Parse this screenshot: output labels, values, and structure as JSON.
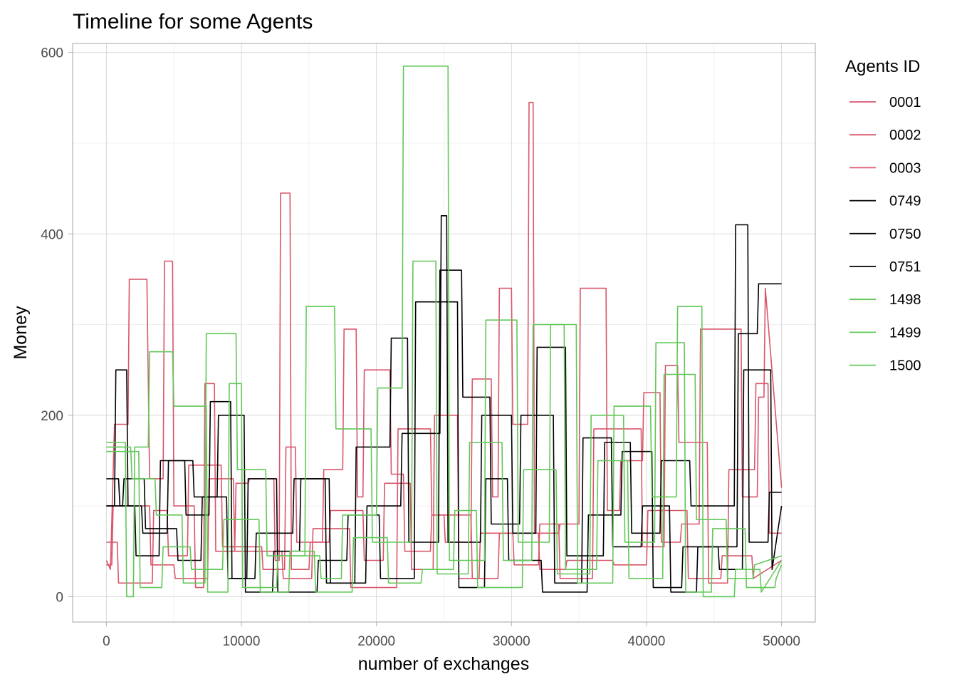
{
  "chart_data": {
    "type": "line",
    "title": "Timeline for some Agents",
    "xlabel": "number of exchanges",
    "ylabel": "Money",
    "xlim": [
      -2500,
      52500
    ],
    "ylim": [
      -28,
      610
    ],
    "x_ticks": [
      0,
      10000,
      20000,
      30000,
      40000,
      50000
    ],
    "x_tick_labels": [
      "0",
      "10000",
      "20000",
      "30000",
      "40000",
      "50000"
    ],
    "y_ticks": [
      0,
      200,
      400,
      600
    ],
    "y_tick_labels": [
      "0",
      "200",
      "400",
      "600"
    ],
    "grid": true,
    "legend": {
      "title": "Agents ID",
      "position": "right"
    },
    "series": [
      {
        "name": "0001",
        "color": "#d9566b",
        "x": [
          0,
          300,
          600,
          1600,
          1700,
          3000,
          3200,
          4200,
          4300,
          4900,
          5000,
          6500,
          6600,
          7200,
          7300,
          8000,
          8100,
          9500,
          9600,
          10500,
          10600,
          12400,
          12500,
          12800,
          12900,
          13600,
          13700,
          15000,
          15100,
          16000,
          16100,
          17500,
          17600,
          18500,
          18600,
          19000,
          19100,
          21000,
          21100,
          22000,
          22100,
          24000,
          24100,
          25000,
          25100,
          27000,
          27100,
          28500,
          28600,
          29000,
          29100,
          30000,
          30100,
          31200,
          31300,
          31600,
          31700,
          33500,
          33600,
          35000,
          35100,
          37000,
          37100,
          38000,
          38100,
          39700,
          39800,
          41000,
          41100,
          42500,
          42600,
          43900,
          44000,
          47000,
          47100,
          48200,
          48300,
          48700,
          48800,
          50000
        ],
        "y": [
          40,
          30,
          190,
          190,
          350,
          350,
          130,
          130,
          370,
          370,
          100,
          100,
          10,
          10,
          235,
          235,
          50,
          50,
          125,
          125,
          130,
          130,
          40,
          40,
          445,
          445,
          30,
          30,
          60,
          60,
          140,
          140,
          295,
          295,
          110,
          110,
          250,
          250,
          135,
          135,
          50,
          50,
          90,
          90,
          60,
          60,
          240,
          240,
          110,
          110,
          340,
          340,
          190,
          190,
          545,
          545,
          70,
          70,
          80,
          80,
          340,
          340,
          95,
          95,
          150,
          150,
          225,
          225,
          60,
          60,
          80,
          80,
          295,
          295,
          110,
          110,
          220,
          220,
          340,
          120
        ]
      },
      {
        "name": "0002",
        "color": "#d9566b",
        "x": [
          0,
          800,
          900,
          3400,
          3500,
          4500,
          4600,
          6000,
          6100,
          8500,
          8600,
          11500,
          11600,
          13200,
          13300,
          14000,
          14100,
          16500,
          16600,
          19000,
          19100,
          20500,
          20600,
          22500,
          22600,
          24200,
          24300,
          26000,
          26100,
          27600,
          27700,
          30100,
          30200,
          32000,
          32100,
          33500,
          33600,
          36000,
          36100,
          39600,
          39700,
          41300,
          41400,
          42300,
          42400,
          44500,
          44600,
          46000,
          46100,
          48000,
          48100,
          49000,
          49100,
          50000
        ],
        "y": [
          60,
          60,
          15,
          15,
          95,
          95,
          45,
          45,
          145,
          145,
          55,
          55,
          30,
          30,
          165,
          165,
          60,
          60,
          95,
          95,
          40,
          40,
          125,
          125,
          30,
          30,
          200,
          200,
          20,
          20,
          70,
          70,
          35,
          35,
          80,
          80,
          20,
          20,
          185,
          185,
          55,
          55,
          255,
          255,
          170,
          170,
          15,
          15,
          140,
          140,
          235,
          235,
          70,
          70
        ]
      },
      {
        "name": "0003",
        "color": "#d9566b",
        "x": [
          0,
          400,
          500,
          3200,
          3300,
          5000,
          5100,
          7500,
          7600,
          9400,
          9500,
          13000,
          13100,
          15200,
          15300,
          18000,
          18100,
          21500,
          21600,
          24000,
          24100,
          27000,
          27100,
          29000,
          29100,
          32000,
          32100,
          34000,
          34100,
          37500,
          37600,
          40000,
          40100,
          43000,
          43100,
          45500,
          45600,
          47800,
          47900,
          50000
        ],
        "y": [
          35,
          35,
          100,
          100,
          35,
          35,
          20,
          20,
          130,
          130,
          50,
          50,
          20,
          20,
          75,
          75,
          10,
          10,
          185,
          185,
          90,
          90,
          20,
          20,
          70,
          70,
          30,
          30,
          40,
          40,
          35,
          35,
          95,
          95,
          20,
          20,
          45,
          45,
          20,
          40
        ]
      },
      {
        "name": "0749",
        "color": "#000000",
        "x": [
          0,
          600,
          700,
          1500,
          1600,
          2600,
          2700,
          4500,
          4600,
          6400,
          6500,
          8200,
          8300,
          10200,
          10300,
          12300,
          12400,
          14300,
          14400,
          16500,
          16600,
          19200,
          19300,
          21800,
          21900,
          24700,
          24800,
          25200,
          25300,
          27700,
          27800,
          30000,
          30100,
          31800,
          31900,
          34000,
          34100,
          36800,
          36900,
          38800,
          38900,
          41000,
          41100,
          43200,
          43300,
          46500,
          46600,
          47500,
          47600,
          49000,
          49100,
          50000
        ],
        "y": [
          100,
          100,
          250,
          250,
          100,
          100,
          70,
          70,
          150,
          150,
          110,
          110,
          200,
          200,
          5,
          5,
          50,
          50,
          130,
          130,
          15,
          15,
          100,
          100,
          180,
          180,
          420,
          420,
          60,
          60,
          200,
          200,
          70,
          70,
          275,
          275,
          45,
          45,
          170,
          170,
          70,
          70,
          150,
          150,
          100,
          100,
          410,
          410,
          60,
          60,
          115,
          115
        ]
      },
      {
        "name": "0750",
        "color": "#000000",
        "x": [
          0,
          900,
          1000,
          2100,
          2200,
          3900,
          4000,
          5800,
          5900,
          7600,
          7700,
          9200,
          9300,
          11000,
          11100,
          13800,
          13900,
          16200,
          16300,
          18400,
          18500,
          21000,
          21100,
          22300,
          22400,
          24600,
          24700,
          26300,
          26400,
          28400,
          28500,
          30600,
          30700,
          33100,
          33200,
          35200,
          35300,
          37400,
          37500,
          39600,
          39700,
          41700,
          41800,
          43700,
          43800,
          46700,
          46800,
          48200,
          48300,
          50000
        ],
        "y": [
          130,
          130,
          100,
          100,
          45,
          45,
          150,
          150,
          90,
          90,
          215,
          215,
          20,
          20,
          70,
          70,
          130,
          130,
          15,
          15,
          165,
          165,
          285,
          285,
          60,
          60,
          360,
          360,
          220,
          220,
          80,
          80,
          200,
          200,
          15,
          15,
          175,
          175,
          55,
          55,
          100,
          100,
          5,
          5,
          55,
          55,
          290,
          290,
          345,
          345
        ]
      },
      {
        "name": "0751",
        "color": "#000000",
        "x": [
          0,
          1200,
          1300,
          2800,
          2900,
          5200,
          5300,
          7000,
          7100,
          8900,
          9000,
          10400,
          10500,
          12600,
          12700,
          15600,
          15700,
          17800,
          17900,
          20200,
          20300,
          22800,
          22900,
          26000,
          26100,
          28000,
          28100,
          29700,
          29800,
          32200,
          32300,
          35600,
          35700,
          38100,
          38200,
          40400,
          40500,
          42600,
          42700,
          45300,
          45400,
          47100,
          47200,
          49200,
          49300,
          50000
        ],
        "y": [
          100,
          100,
          130,
          130,
          75,
          75,
          40,
          40,
          110,
          110,
          20,
          20,
          130,
          130,
          5,
          5,
          40,
          40,
          90,
          90,
          20,
          20,
          325,
          325,
          10,
          10,
          130,
          130,
          40,
          40,
          5,
          5,
          90,
          90,
          160,
          160,
          10,
          10,
          55,
          55,
          30,
          30,
          250,
          250,
          30,
          100
        ]
      },
      {
        "name": "1498",
        "color": "#62c858",
        "x": [
          0,
          1400,
          1500,
          2000,
          2100,
          3100,
          3200,
          4900,
          5000,
          7400,
          7500,
          9000,
          9100,
          10000,
          10100,
          12600,
          12700,
          15800,
          15900,
          17400,
          17500,
          20000,
          20100,
          21900,
          22000,
          25300,
          25400,
          28000,
          28100,
          30400,
          30500,
          32800,
          32900,
          34800,
          34900,
          37500,
          37600,
          40300,
          40400,
          42200,
          42300,
          44100,
          44200,
          46500,
          46600,
          48400,
          48500,
          50000
        ],
        "y": [
          170,
          170,
          0,
          0,
          165,
          165,
          270,
          270,
          210,
          210,
          5,
          5,
          235,
          235,
          10,
          10,
          45,
          45,
          20,
          20,
          90,
          90,
          230,
          230,
          585,
          585,
          40,
          40,
          305,
          305,
          60,
          60,
          300,
          300,
          15,
          15,
          210,
          210,
          110,
          110,
          320,
          320,
          0,
          0,
          30,
          30,
          5,
          40
        ]
      },
      {
        "name": "1499",
        "color": "#62c858",
        "x": [
          0,
          1800,
          1900,
          3600,
          3700,
          5600,
          5700,
          7300,
          7400,
          9600,
          9700,
          11800,
          11900,
          14700,
          14800,
          16900,
          17000,
          19600,
          19700,
          22600,
          22700,
          24400,
          24500,
          26800,
          26900,
          29300,
          29400,
          31500,
          31600,
          33900,
          34000,
          36300,
          36400,
          38600,
          38700,
          41200,
          41300,
          43600,
          43700,
          45900,
          46000,
          47900,
          48000,
          50000
        ],
        "y": [
          165,
          165,
          130,
          130,
          90,
          90,
          15,
          15,
          290,
          290,
          140,
          140,
          45,
          45,
          320,
          320,
          185,
          185,
          60,
          60,
          370,
          370,
          25,
          25,
          170,
          170,
          40,
          40,
          300,
          300,
          30,
          30,
          150,
          150,
          20,
          20,
          245,
          245,
          85,
          85,
          20,
          20,
          35,
          45
        ]
      },
      {
        "name": "1500",
        "color": "#62c858",
        "x": [
          0,
          2400,
          2500,
          4100,
          4200,
          6200,
          6300,
          8600,
          8700,
          11300,
          11400,
          13500,
          13600,
          15400,
          15500,
          18200,
          18300,
          20800,
          20900,
          23300,
          23400,
          25700,
          25800,
          27400,
          27500,
          30800,
          30900,
          33300,
          33400,
          35800,
          35900,
          38300,
          38400,
          40600,
          40700,
          42800,
          42900,
          44800,
          44900,
          47300,
          47400,
          49500,
          49600,
          50000
        ],
        "y": [
          160,
          160,
          10,
          10,
          55,
          55,
          30,
          30,
          85,
          85,
          5,
          5,
          50,
          50,
          5,
          5,
          65,
          65,
          15,
          15,
          30,
          30,
          95,
          95,
          10,
          10,
          140,
          140,
          25,
          25,
          200,
          200,
          60,
          60,
          280,
          280,
          5,
          5,
          75,
          75,
          10,
          10,
          20,
          35
        ]
      }
    ]
  }
}
